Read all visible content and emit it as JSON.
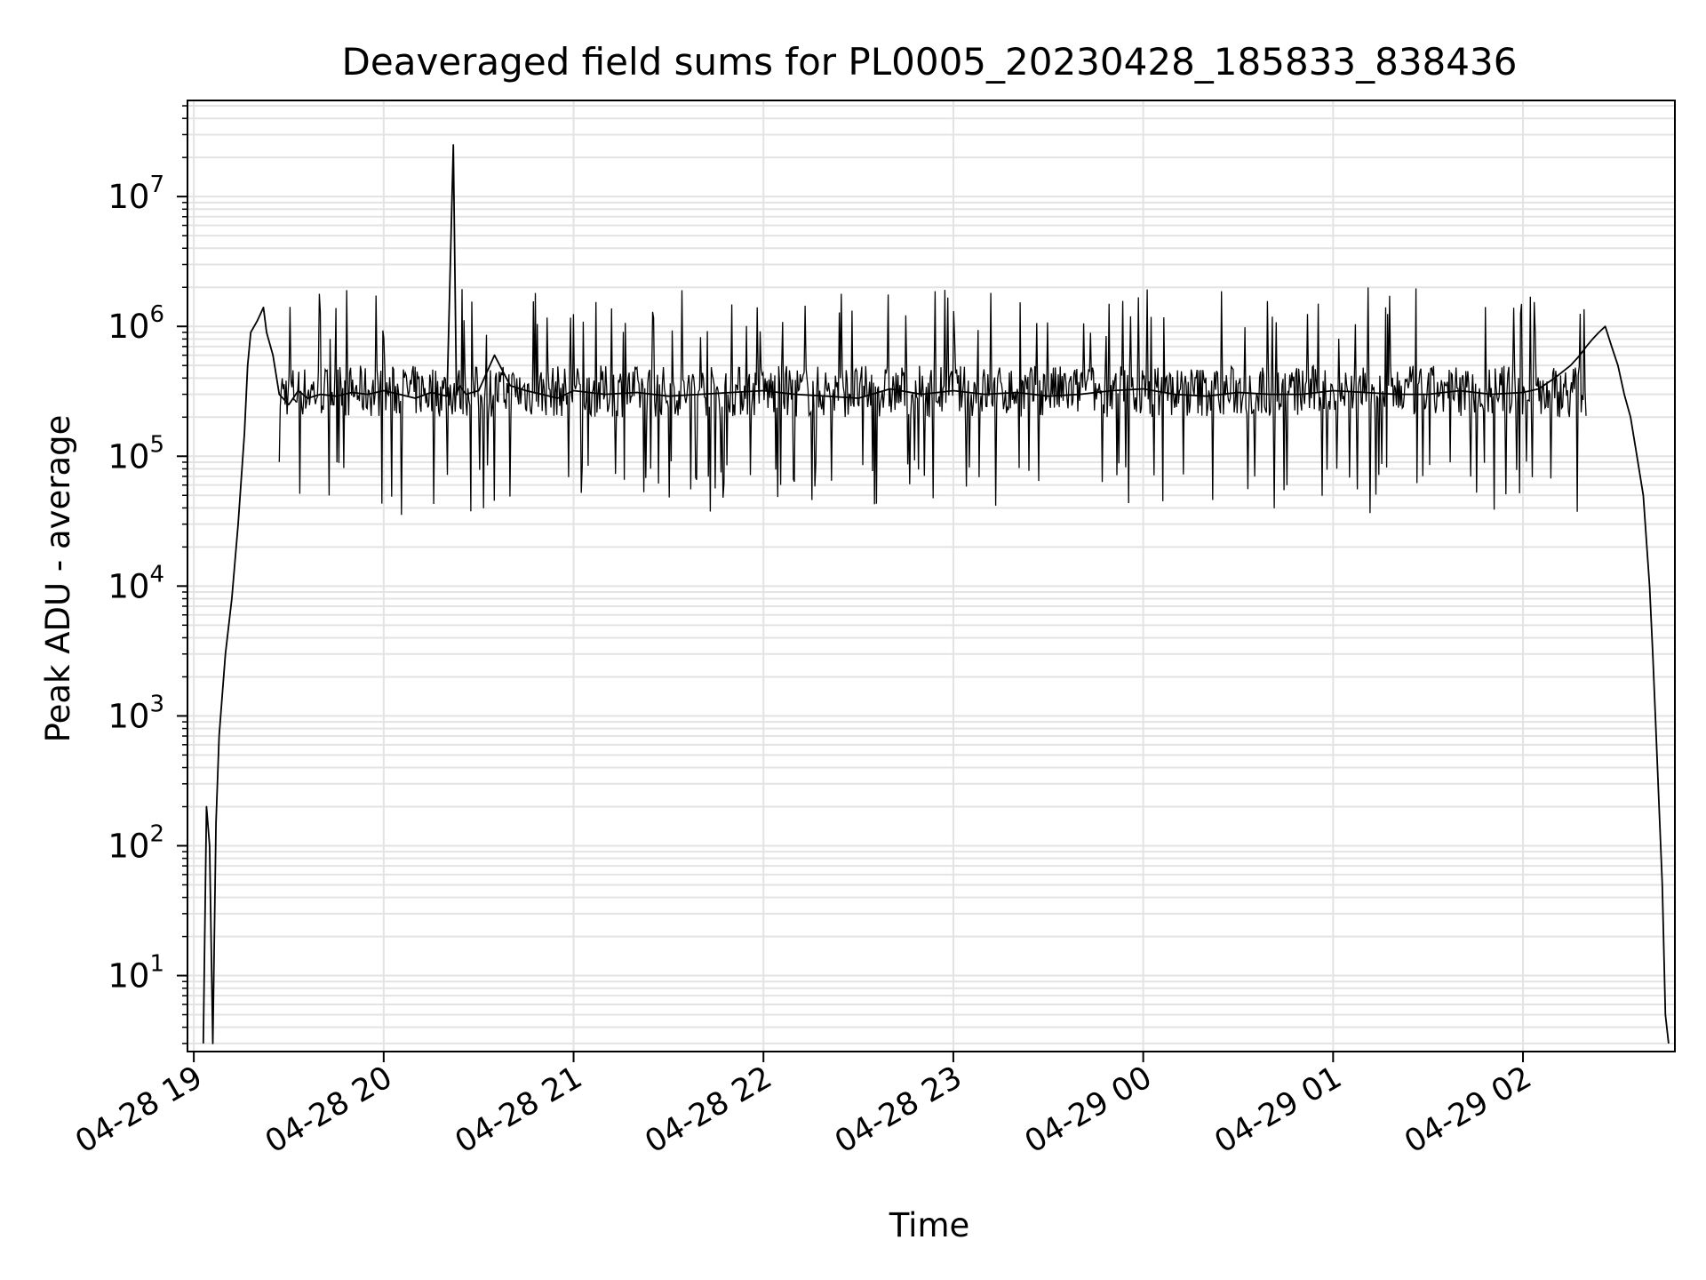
{
  "chart_data": {
    "type": "line",
    "title": "Deaveraged field sums for PL0005_20230428_185833_838436",
    "xlabel": "Time",
    "ylabel": "Peak ADU - average",
    "yscale": "log",
    "grid": true,
    "legend": "none",
    "x_tick_labels": [
      "04-28 19",
      "04-28 20",
      "04-28 21",
      "04-28 22",
      "04-28 23",
      "04-29 00",
      "04-29 01",
      "04-29 02"
    ],
    "x_ticks": [
      "2023-04-28 19:00",
      "2023-04-28 20:00",
      "2023-04-28 21:00",
      "2023-04-28 22:00",
      "2023-04-28 23:00",
      "2023-04-29 00:00",
      "2023-04-29 01:00",
      "2023-04-29 02:00"
    ],
    "xlim": [
      "2023-04-28 18:58",
      "2023-04-29 02:48"
    ],
    "y_tick_labels": [
      {
        "base": "10",
        "exp": "1"
      },
      {
        "base": "10",
        "exp": "2"
      },
      {
        "base": "10",
        "exp": "3"
      },
      {
        "base": "10",
        "exp": "4"
      },
      {
        "base": "10",
        "exp": "5"
      },
      {
        "base": "10",
        "exp": "6"
      },
      {
        "base": "10",
        "exp": "7"
      }
    ],
    "y_ticks": [
      10,
      100,
      1000,
      10000,
      100000,
      1000000,
      10000000
    ],
    "ylim": [
      2.6,
      55000000
    ],
    "line_color": "#000000",
    "grid_color": "#e3e3e3",
    "series": [
      {
        "x": [
          "2023-04-28 19:03",
          "2023-04-28 19:04",
          "2023-04-28 19:05",
          "2023-04-28 19:06",
          "2023-04-28 19:07",
          "2023-04-28 19:08",
          "2023-04-28 19:10",
          "2023-04-28 19:12",
          "2023-04-28 19:14",
          "2023-04-28 19:16",
          "2023-04-28 19:17",
          "2023-04-28 19:18",
          "2023-04-28 19:20",
          "2023-04-28 19:22",
          "2023-04-28 19:23",
          "2023-04-28 19:25",
          "2023-04-28 19:27",
          "2023-04-28 19:30",
          "2023-04-28 19:33",
          "2023-04-28 19:36",
          "2023-04-28 19:40",
          "2023-04-28 19:45",
          "2023-04-28 19:50",
          "2023-04-28 19:55",
          "2023-04-28 20:00",
          "2023-04-28 20:05",
          "2023-04-28 20:10",
          "2023-04-28 20:15",
          "2023-04-28 20:20",
          "2023-04-28 20:22",
          "2023-04-28 20:23",
          "2023-04-28 20:24",
          "2023-04-28 20:26",
          "2023-04-28 20:30",
          "2023-04-28 20:35",
          "2023-04-28 20:40",
          "2023-04-28 20:45",
          "2023-04-28 20:50",
          "2023-04-28 20:55",
          "2023-04-28 21:00",
          "2023-04-28 21:10",
          "2023-04-28 21:20",
          "2023-04-28 21:30",
          "2023-04-28 21:40",
          "2023-04-28 21:50",
          "2023-04-28 22:00",
          "2023-04-28 22:10",
          "2023-04-28 22:20",
          "2023-04-28 22:30",
          "2023-04-28 22:40",
          "2023-04-28 22:50",
          "2023-04-28 23:00",
          "2023-04-28 23:10",
          "2023-04-28 23:20",
          "2023-04-28 23:30",
          "2023-04-28 23:40",
          "2023-04-28 23:50",
          "2023-04-29 00:00",
          "2023-04-29 00:10",
          "2023-04-29 00:20",
          "2023-04-29 00:30",
          "2023-04-29 00:40",
          "2023-04-29 00:50",
          "2023-04-29 01:00",
          "2023-04-29 01:10",
          "2023-04-29 01:20",
          "2023-04-29 01:30",
          "2023-04-29 01:40",
          "2023-04-29 01:50",
          "2023-04-29 02:00",
          "2023-04-29 02:05",
          "2023-04-29 02:10",
          "2023-04-29 02:15",
          "2023-04-29 02:18",
          "2023-04-29 02:20",
          "2023-04-29 02:22",
          "2023-04-29 02:24",
          "2023-04-29 02:26",
          "2023-04-29 02:28",
          "2023-04-29 02:30",
          "2023-04-29 02:32",
          "2023-04-29 02:34",
          "2023-04-29 02:36",
          "2023-04-29 02:38",
          "2023-04-29 02:40",
          "2023-04-29 02:41",
          "2023-04-29 02:42",
          "2023-04-29 02:43",
          "2023-04-29 02:44",
          "2023-04-29 02:45",
          "2023-04-29 02:46"
        ],
        "y": [
          3,
          200,
          100,
          3,
          150,
          700,
          3000,
          8000,
          30000,
          150000,
          500000,
          900000,
          1100000,
          1400000,
          900000,
          600000,
          300000,
          250000,
          320000,
          280000,
          300000,
          290000,
          310000,
          300000,
          320000,
          300000,
          280000,
          310000,
          290000,
          25000000,
          300000,
          350000,
          300000,
          320000,
          600000,
          350000,
          320000,
          300000,
          280000,
          320000,
          300000,
          310000,
          290000,
          300000,
          310000,
          320000,
          300000,
          290000,
          280000,
          330000,
          300000,
          320000,
          300000,
          310000,
          290000,
          300000,
          320000,
          330000,
          300000,
          290000,
          310000,
          300000,
          300000,
          320000,
          310000,
          300000,
          300000,
          320000,
          300000,
          310000,
          330000,
          400000,
          500000,
          600000,
          700000,
          800000,
          900000,
          1000000,
          700000,
          500000,
          300000,
          200000,
          100000,
          50000,
          10000,
          3000,
          800,
          200,
          50,
          5,
          3
        ]
      }
    ],
    "noise_band_lo": [
      100000,
      200000
    ],
    "noise_band_hi": [
      500000,
      1000000
    ]
  }
}
